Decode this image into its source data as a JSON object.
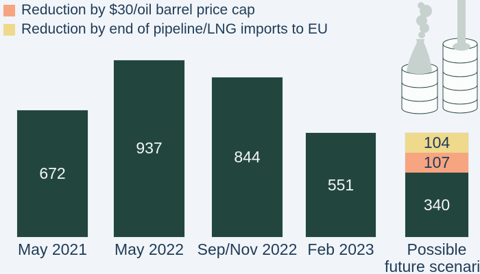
{
  "colors": {
    "background": "#f1f5f9",
    "bar_green": "#22463e",
    "orange": "#f7a480",
    "yellow": "#eed98c",
    "text_navy": "#1f3a57",
    "value_text_light": "#f2f6f5",
    "bar_halo": "#e2ebee",
    "illustration_gray": "#c7d1ce",
    "illustration_stroke": "#2e4c44",
    "coin_fill": "#fbfdfd"
  },
  "legend": {
    "items": [
      {
        "key": "oil-price-cap",
        "label": "Reduction by $30/oil barrel price cap",
        "color": "#f7a480"
      },
      {
        "key": "pipeline-lng",
        "label": "Reduction by end of pipeline/LNG imports to EU",
        "color": "#eed98c"
      }
    ]
  },
  "chart_data": {
    "type": "bar",
    "stacked": true,
    "title": "",
    "xlabel": "",
    "ylabel": "",
    "legend_position": "top-left",
    "value_labels": "inside",
    "axis_lines": "none",
    "categories": [
      "May 2021",
      "May 2022",
      "Sep/Nov 2022",
      "Feb 2023",
      "Possible future scenario"
    ],
    "series": [
      {
        "key": "base",
        "name": "base (no legend label)",
        "color": "#22463e",
        "value_text_color": "#f2f6f5",
        "values": [
          672,
          937,
          844,
          551,
          340
        ]
      },
      {
        "key": "oil-price-cap",
        "name": "Reduction by $30/oil barrel price cap",
        "color": "#f7a480",
        "value_text_color": "#1f3a57",
        "values": [
          0,
          0,
          0,
          0,
          107
        ]
      },
      {
        "key": "pipeline-lng",
        "name": "Reduction by end of pipeline/LNG imports to EU",
        "color": "#eed98c",
        "value_text_color": "#1f3a57",
        "values": [
          0,
          0,
          0,
          0,
          104
        ]
      }
    ]
  },
  "illustration": {
    "name": "coin-stacks-energy-revenue",
    "parts": [
      "cooling-tower-with-smoke-on-coin-stack",
      "drill-pole-in-coin-stack"
    ]
  }
}
